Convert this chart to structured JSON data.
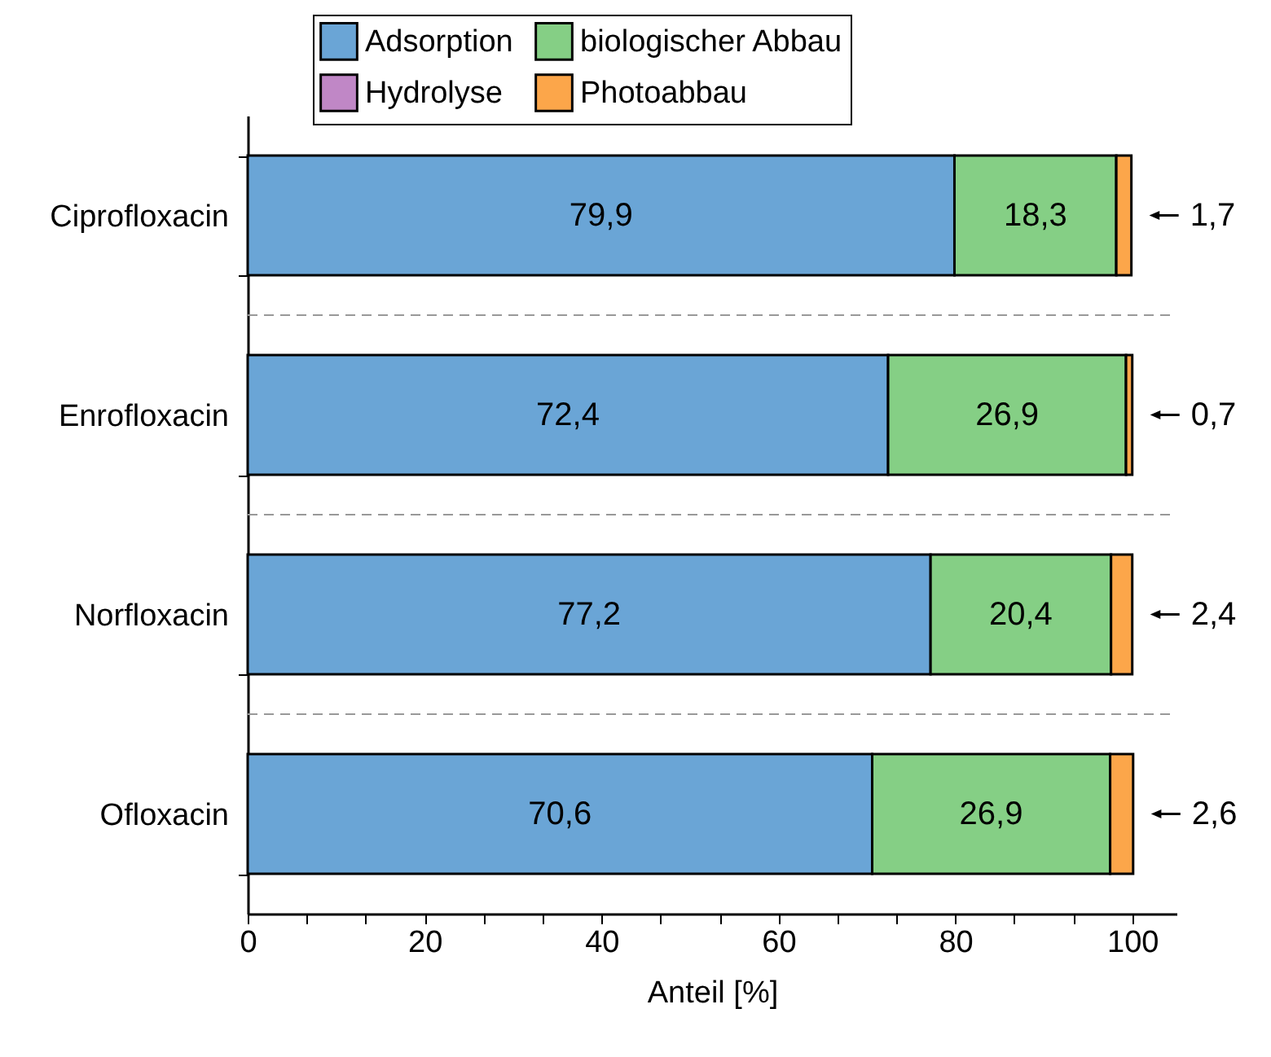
{
  "chart_data": {
    "type": "bar",
    "orientation": "horizontal",
    "stacked": true,
    "xlabel": "Anteil [%]",
    "categories": [
      "Ciprofloxacin",
      "Enrofloxacin",
      "Norfloxacin",
      "Ofloxacin"
    ],
    "series": [
      {
        "name": "Adsorption",
        "color": "#6aa5d6",
        "values": [
          79.9,
          72.4,
          77.2,
          70.6
        ],
        "value_labels": [
          "79,9",
          "72,4",
          "77,2",
          "70,6"
        ]
      },
      {
        "name": "biologischer Abbau",
        "color": "#85cf85",
        "values": [
          18.3,
          26.9,
          20.4,
          26.9
        ],
        "value_labels": [
          "18,3",
          "26,9",
          "20,4",
          "26,9"
        ]
      },
      {
        "name": "Hydrolyse",
        "color": "#c087c6",
        "values": [
          0,
          0,
          0,
          0
        ]
      },
      {
        "name": "Photoabbau",
        "color": "#fca64a",
        "values": [
          1.7,
          0.7,
          2.4,
          2.6
        ],
        "value_labels": [
          "1,7",
          "0,7",
          "2,4",
          "2,6"
        ]
      }
    ],
    "xlim": [
      0,
      105
    ],
    "xticks": [
      0,
      {
        "value": 6.67,
        "label": null
      },
      {
        "value": 13.33,
        "label": null
      },
      20,
      {
        "value": 26.67,
        "label": null
      },
      {
        "value": 33.33,
        "label": null
      },
      40,
      {
        "value": 46.67,
        "label": null
      },
      {
        "value": 53.33,
        "label": null
      },
      60,
      {
        "value": 66.67,
        "label": null
      },
      {
        "value": 73.33,
        "label": null
      },
      80,
      {
        "value": 86.67,
        "label": null
      },
      {
        "value": 93.33,
        "label": null
      },
      100
    ],
    "grid": "y",
    "line_style": "dashed",
    "legend": "top"
  }
}
